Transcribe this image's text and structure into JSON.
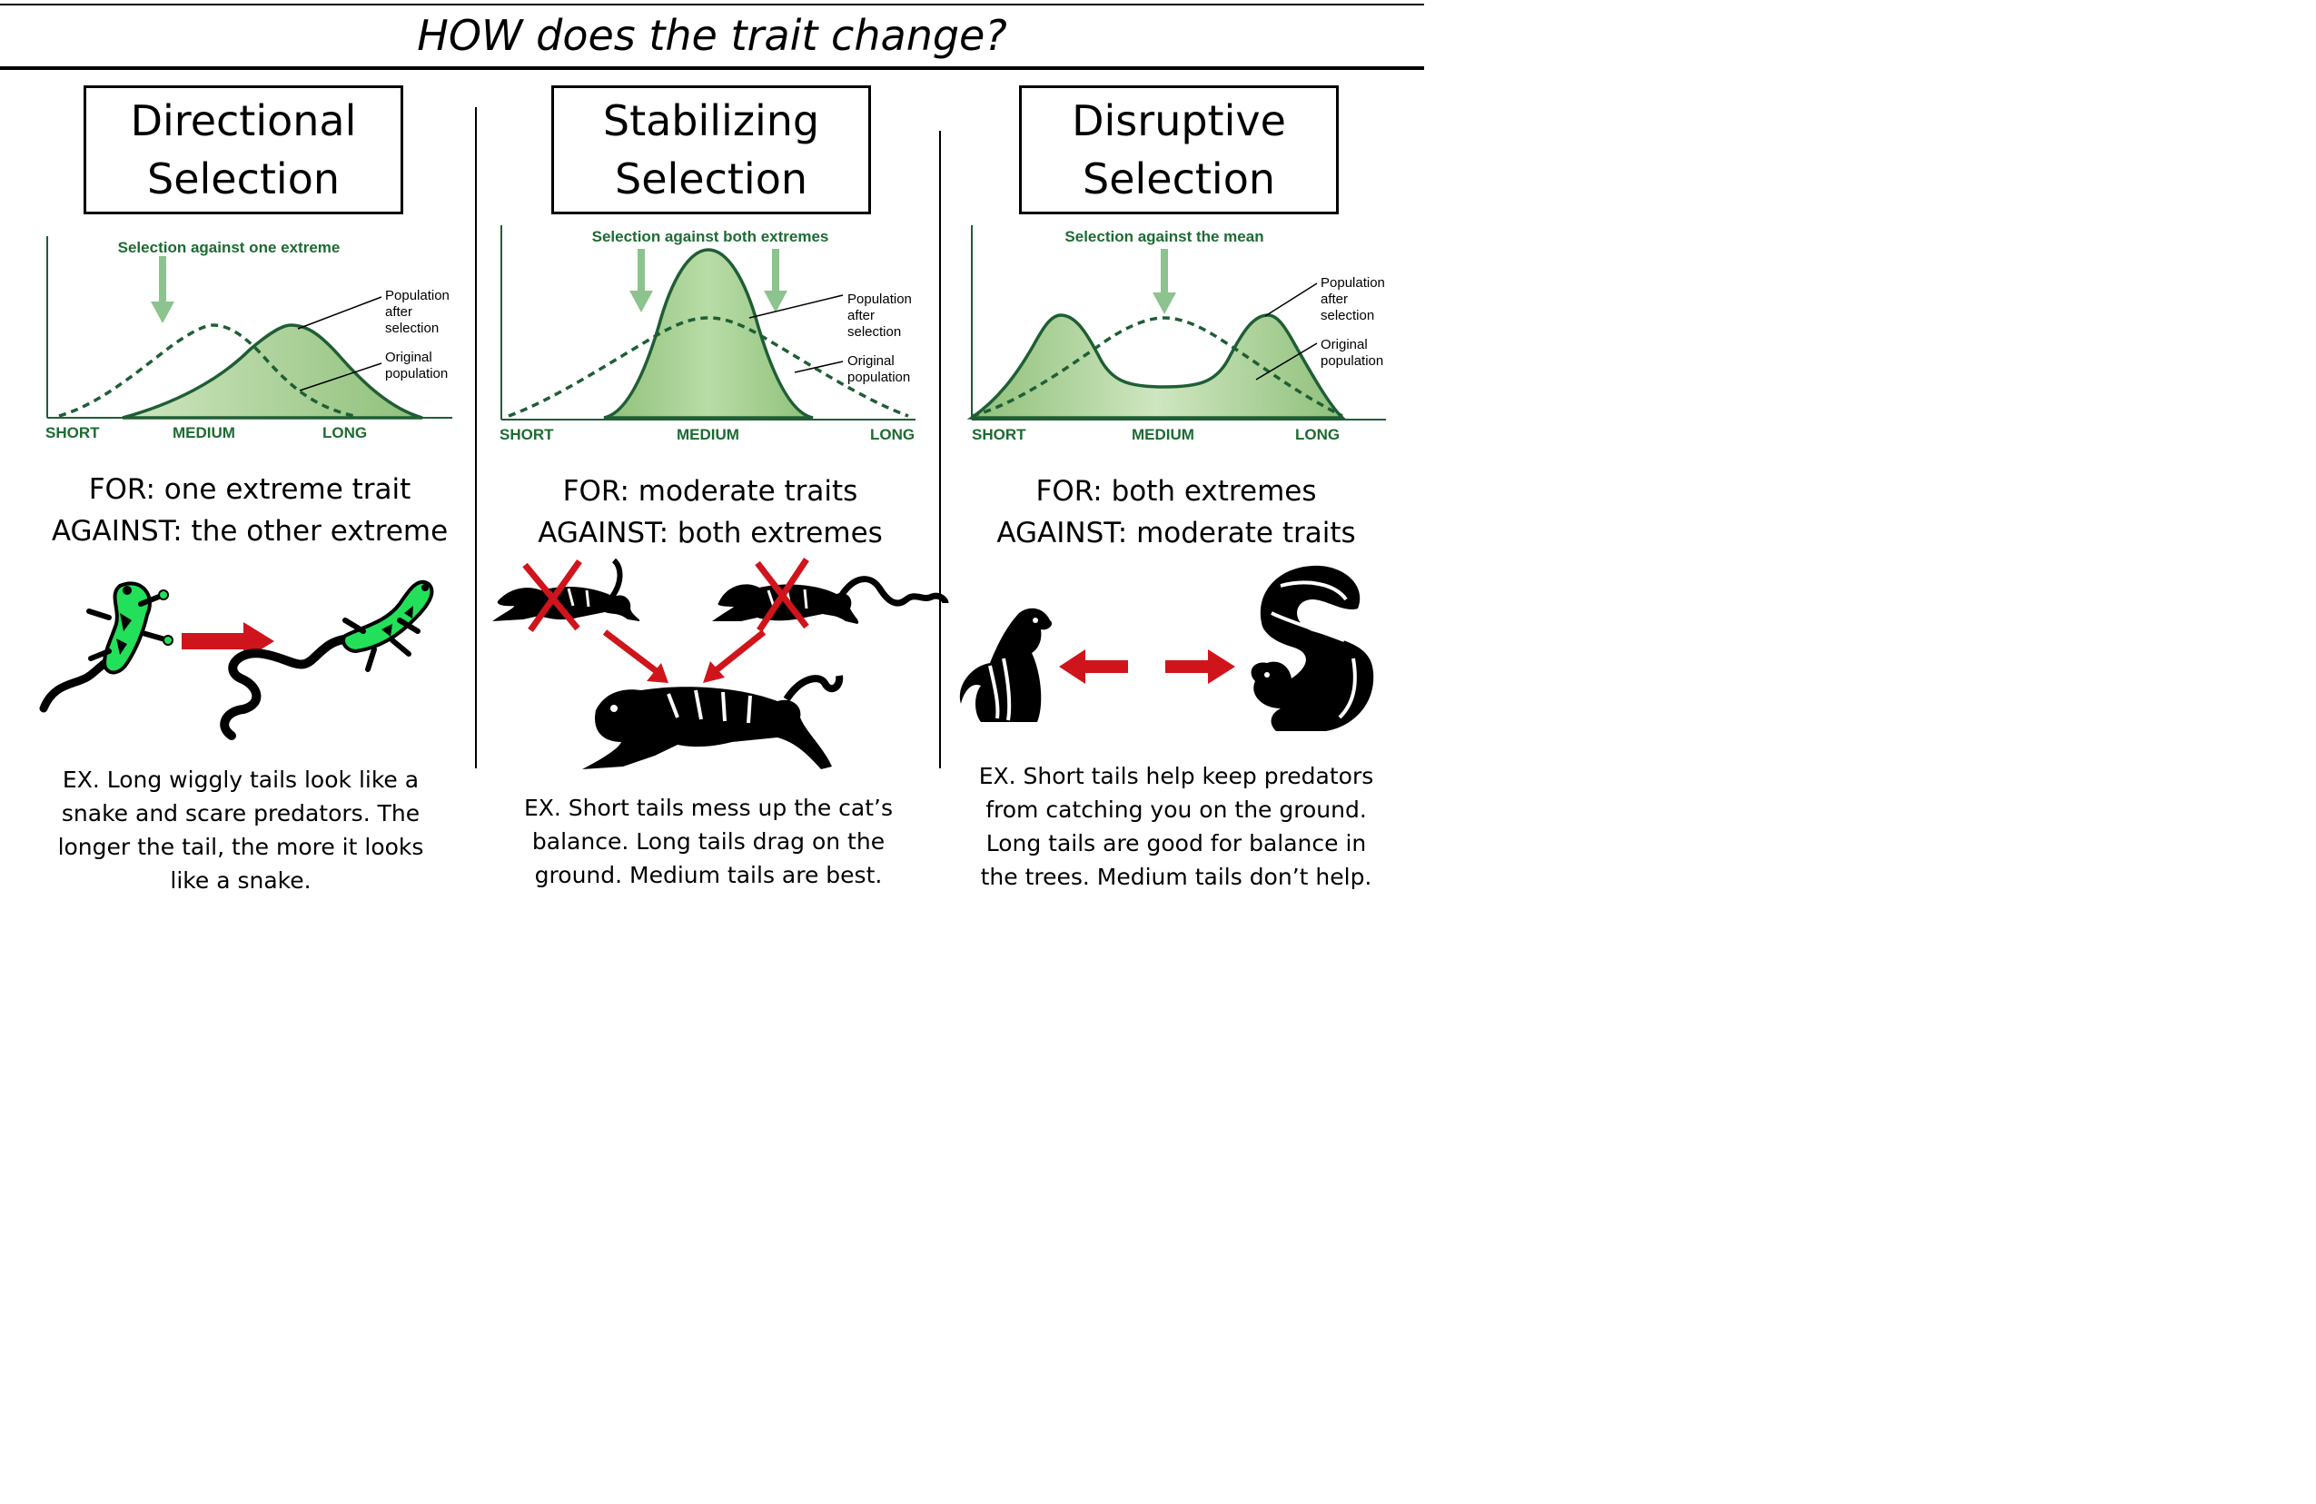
{
  "title": "HOW does the trait change?",
  "colors": {
    "curve_green": "#1f5e35",
    "fill_green": "#a8d08d",
    "arrow_green": "#8cc38f",
    "label_green": "#1d6b33",
    "red": "#d0141c",
    "lizard_green": "#22e05a"
  },
  "panels": [
    {
      "heading_line1": "Directional",
      "heading_line2": "Selection",
      "graph": {
        "caption": "Selection against one extreme",
        "label_after": [
          "Population",
          "after",
          "selection"
        ],
        "label_original": [
          "Original",
          "population"
        ],
        "axis": {
          "left": "SHORT",
          "mid": "MEDIUM",
          "right": "LONG"
        }
      },
      "for_line": "FOR: one extreme trait",
      "against_line": "AGAINST: the other extreme",
      "example_lines": [
        "EX. Long wiggly tails look like a",
        "snake and scare predators. The",
        "longer the tail, the more it looks",
        "like a snake."
      ],
      "icons": [
        "lizard-short-tail-icon",
        "right-arrow-icon",
        "lizard-long-tail-icon"
      ]
    },
    {
      "heading_line1": "Stabilizing",
      "heading_line2": "Selection",
      "graph": {
        "caption": "Selection against both extremes",
        "label_after": [
          "Population",
          "after",
          "selection"
        ],
        "label_original": [
          "Original",
          "population"
        ],
        "axis": {
          "left": "SHORT",
          "mid": "MEDIUM",
          "right": "LONG"
        }
      },
      "for_line": "FOR: moderate traits",
      "against_line": "AGAINST: both extremes",
      "example_lines": [
        "EX. Short tails mess up the cat’s",
        "balance. Long tails drag on the",
        "ground. Medium tails are best."
      ],
      "icons": [
        "short-tail-cat-crossed-icon",
        "long-tail-cat-crossed-icon",
        "medium-tail-cat-icon"
      ]
    },
    {
      "heading_line1": "Disruptive",
      "heading_line2": "Selection",
      "graph": {
        "caption": "Selection against the mean",
        "label_after": [
          "Population",
          "after",
          "selection"
        ],
        "label_original": [
          "Original",
          "population"
        ],
        "axis": {
          "left": "SHORT",
          "mid": "MEDIUM",
          "right": "LONG"
        }
      },
      "for_line": "FOR: both extremes",
      "against_line": "AGAINST: moderate traits",
      "example_lines": [
        "EX. Short tails help keep predators",
        "from catching you on the ground.",
        "Long tails are good for balance in",
        "the trees. Medium tails don’t help."
      ],
      "icons": [
        "chipmunk-icon",
        "left-arrow-icon",
        "right-arrow-icon",
        "squirrel-icon"
      ]
    }
  ]
}
